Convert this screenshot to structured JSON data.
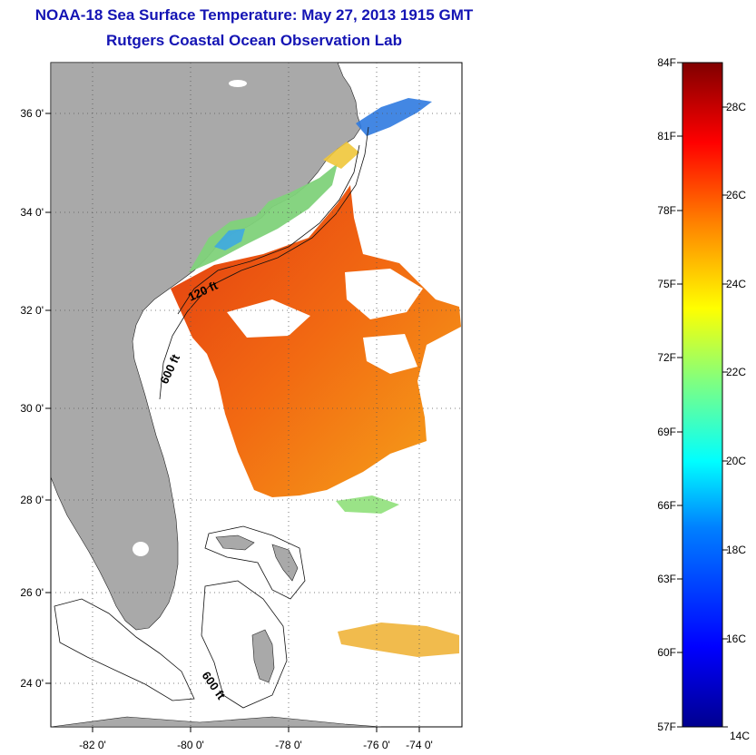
{
  "header": {
    "title": "NOAA-18 Sea Surface Temperature:  May 27, 2013 1915 GMT",
    "subtitle": "Rutgers Coastal Ocean Observation Lab"
  },
  "map": {
    "lat_labels": [
      "36 0'",
      "34 0'",
      "32 0'",
      "30 0'",
      "28 0'",
      "26 0'",
      "24 0'"
    ],
    "lon_labels": [
      "-82 0'",
      "-80 0'",
      "-78 0'",
      "-76 0'",
      "-74 0'"
    ],
    "contour_labels": [
      "120 ft",
      "600 ft",
      "600 ft"
    ],
    "colors": {
      "land": "#a9a9a9",
      "ocean": "#ffffff",
      "grid": "#555555"
    }
  },
  "colorbar": {
    "fahrenheit_labels": [
      "84F",
      "81F",
      "78F",
      "75F",
      "72F",
      "69F",
      "66F",
      "63F",
      "60F",
      "57F"
    ],
    "celsius_labels": [
      "28C",
      "26C",
      "24C",
      "22C",
      "20C",
      "18C",
      "16C",
      "14C"
    ],
    "stops": [
      "#00008f",
      "#0000ff",
      "#0080ff",
      "#00ffff",
      "#80ff80",
      "#ffff00",
      "#ff8000",
      "#ff0000",
      "#800000"
    ]
  }
}
